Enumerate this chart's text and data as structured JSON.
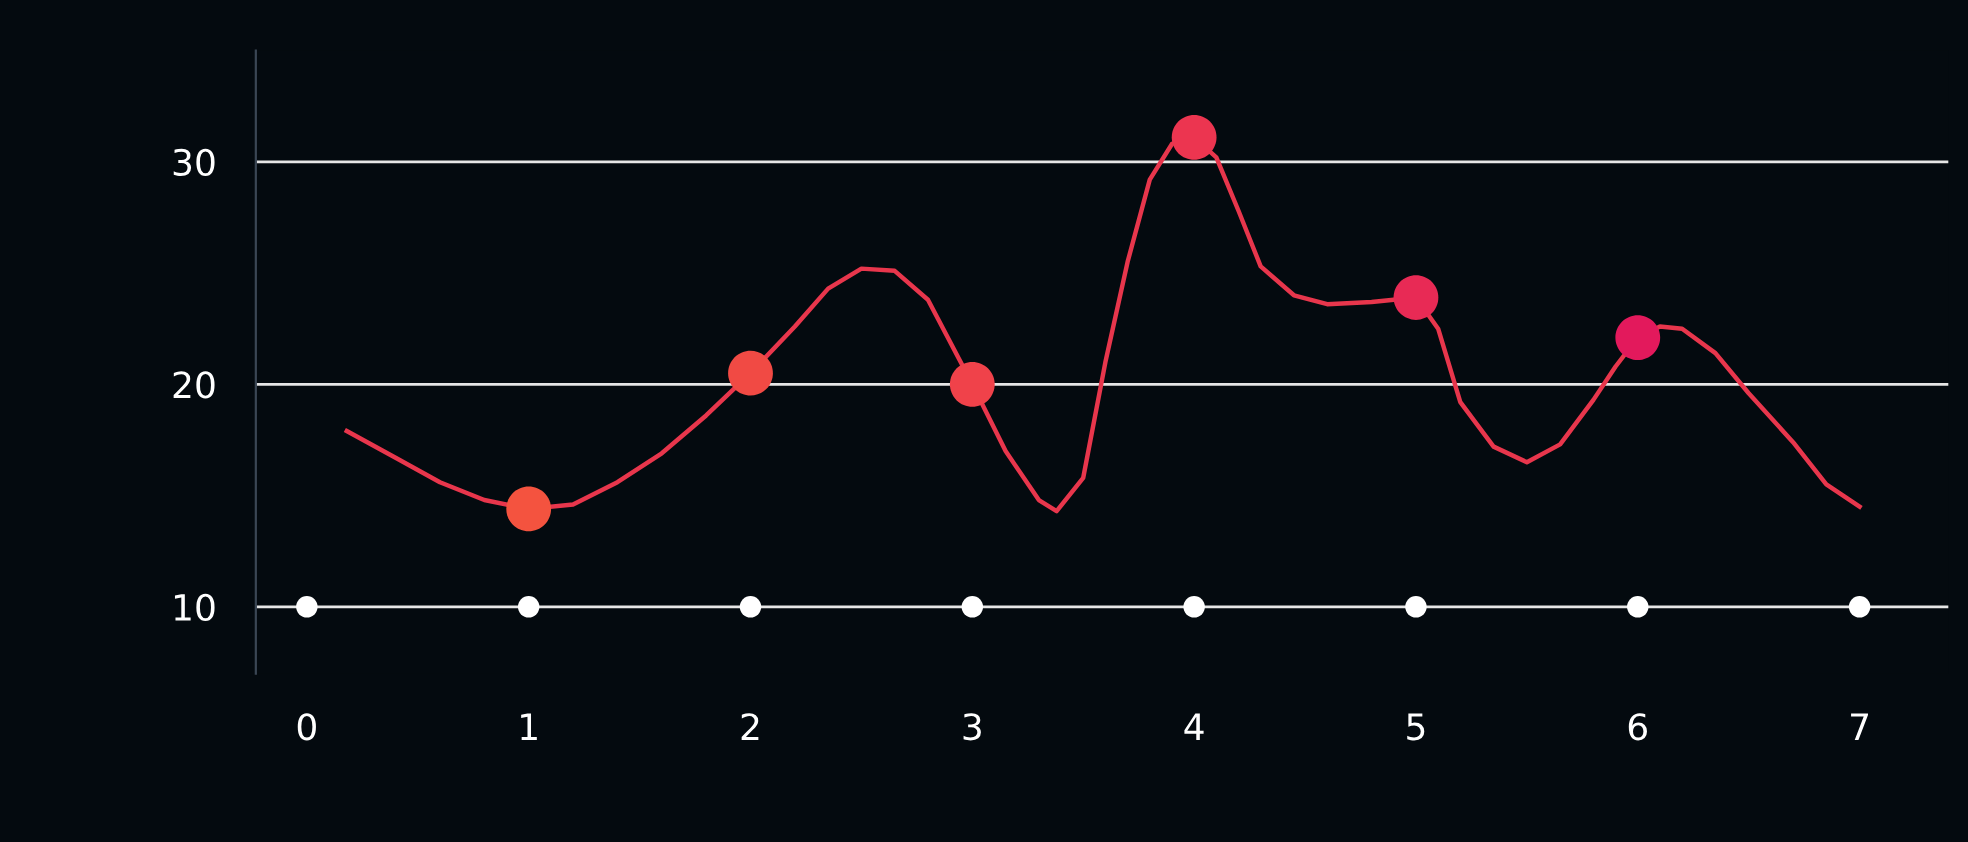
{
  "chart_data": {
    "type": "line",
    "series": [
      {
        "color": "#e8364c",
        "marker": "none",
        "x": [
          0.18,
          0.4,
          0.6,
          0.8,
          1.0,
          1.2,
          1.4,
          1.6,
          1.8,
          2.0,
          2.2,
          2.35,
          2.5,
          2.65,
          2.8,
          3.0,
          3.15,
          3.3,
          3.38,
          3.5,
          3.6,
          3.7,
          3.8,
          3.9,
          4.0,
          4.1,
          4.2,
          4.3,
          4.45,
          4.6,
          4.8,
          5.0,
          5.1,
          5.2,
          5.35,
          5.5,
          5.65,
          5.8,
          5.9,
          6.0,
          6.1,
          6.2,
          6.35,
          6.5,
          6.7,
          6.85,
          7.0
        ],
        "values": [
          17.9,
          16.7,
          15.6,
          14.8,
          14.4,
          14.6,
          15.6,
          16.9,
          18.6,
          20.5,
          22.6,
          24.3,
          25.2,
          25.1,
          23.8,
          20.0,
          17.0,
          14.8,
          14.3,
          15.8,
          21.0,
          25.5,
          29.2,
          30.8,
          31.1,
          30.2,
          27.8,
          25.3,
          24.0,
          23.6,
          23.7,
          23.9,
          22.5,
          19.2,
          17.2,
          16.5,
          17.3,
          19.3,
          20.8,
          22.1,
          22.6,
          22.5,
          21.4,
          19.6,
          17.4,
          15.5,
          14.5
        ]
      },
      {
        "type": "scatter",
        "marker": "circle",
        "x": [
          1,
          2,
          3,
          4,
          5,
          6
        ],
        "values": [
          14.4,
          20.5,
          20.0,
          31.1,
          23.9,
          22.1
        ],
        "colors": [
          "#f4533f",
          "#f14a44",
          "#f0424a",
          "#ec3550",
          "#e82a55",
          "#e3195c"
        ]
      },
      {
        "type": "scatter",
        "marker": "circle",
        "color": "#ffffff",
        "x": [
          0,
          1,
          2,
          3,
          4,
          5,
          6,
          7
        ],
        "values": [
          10,
          10,
          10,
          10,
          10,
          10,
          10,
          10
        ]
      }
    ],
    "xlim": [
      -0.23,
      7.4
    ],
    "xticks": [
      0,
      1,
      2,
      3,
      4,
      5,
      6,
      7
    ],
    "ylim": [
      7,
      35
    ],
    "yticks": [
      10,
      20,
      30
    ],
    "grid": "y",
    "line_style": "solid"
  }
}
